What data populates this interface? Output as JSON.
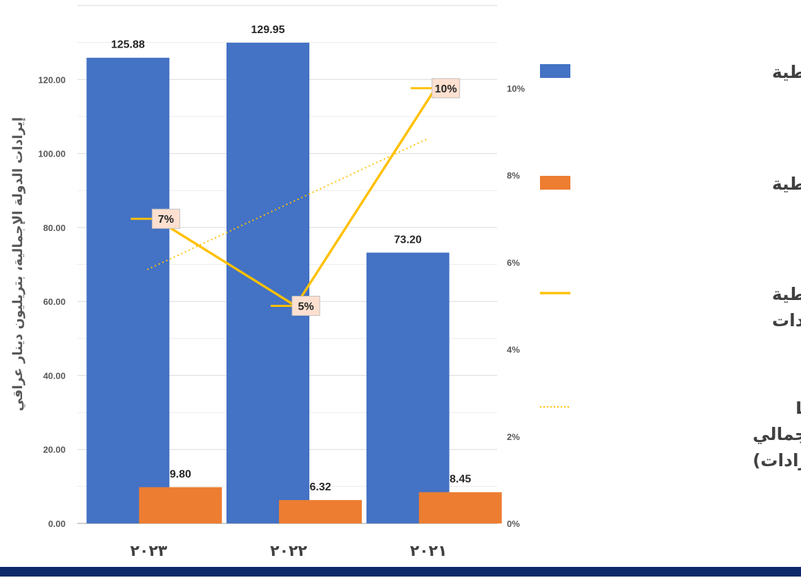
{
  "chart_data": {
    "type": "bar",
    "categories": [
      "٢٠٢٣",
      "٢٠٢٢",
      "٢٠٢١"
    ],
    "series": [
      {
        "name": "الإيرادات النفطية",
        "type": "bar",
        "axis": "left",
        "color": "#4472c4",
        "values": [
          125.88,
          129.95,
          73.2
        ],
        "labels": [
          "125.88",
          "129.95",
          "73.20"
        ]
      },
      {
        "name": "الإيرادات غير النفطية",
        "type": "bar",
        "axis": "left",
        "color": "#ed7d31",
        "values": [
          9.8,
          6.32,
          8.45
        ],
        "labels": [
          "9.80",
          "6.32",
          "8.45"
        ]
      },
      {
        "name": "الإيرادات غير النفطية من إجمالي الإيرادات",
        "type": "line",
        "axis": "right",
        "color": "#ffc000",
        "values": [
          7,
          5,
          10
        ],
        "labels": [
          "7%",
          "5%",
          "10%"
        ]
      },
      {
        "name": "Linear (الإيرادات غير النفطية من إجمالي الإيرادات)",
        "type": "trendline",
        "axis": "right",
        "color": "#ffc000",
        "style": "dotted"
      }
    ],
    "y_left": {
      "label": "إيرادات الدولة الإجمالية، بتريليون دينار عراقي",
      "ylim": [
        0,
        140
      ],
      "ticks": [
        "0.00",
        "20.00",
        "40.00",
        "60.00",
        "80.00",
        "100.00",
        "120.00"
      ]
    },
    "y_right": {
      "label": "",
      "ylim": [
        0,
        11.9
      ],
      "ticks": [
        "0%",
        "2%",
        "4%",
        "6%",
        "8%",
        "10%"
      ]
    },
    "grid": true,
    "legend_position": "right",
    "legend": [
      {
        "lines": [
          "الإيرادات النفطية"
        ],
        "marker": "bar",
        "color": "#4472c4"
      },
      {
        "lines": [
          "الإيرادات غير النفطية"
        ],
        "marker": "bar",
        "color": "#ed7d31"
      },
      {
        "lines": [
          "الإيرادات غير النفطية",
          "من إجمالي الإيرادات"
        ],
        "marker": "line",
        "color": "#ffc000"
      },
      {
        "lines": [
          "الإيرادات غير ) Linear",
          "النفطية من إجمالي",
          "الإيرادات)"
        ],
        "marker": "dotted",
        "color": "#ffc000"
      }
    ]
  },
  "colors": {
    "footer_bar": "#0d2a6b",
    "grid": "#d9d9d9",
    "label_box": "#fde0d0"
  }
}
